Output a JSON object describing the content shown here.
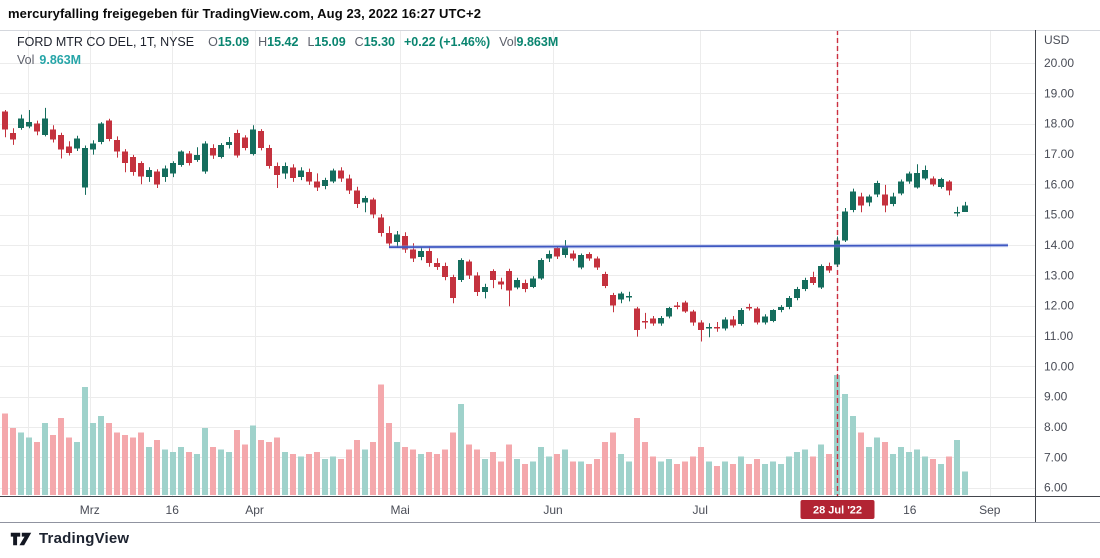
{
  "attribution": "mercuryfalling freigegeben für TradingView.com, Aug 23, 2022 16:27 UTC+2",
  "legend": {
    "title": "FORD MTR CO DEL, 1T, NYSE",
    "ohlc": [
      {
        "label": "O",
        "value": "15.09"
      },
      {
        "label": "H",
        "value": "15.42"
      },
      {
        "label": "L",
        "value": "15.09"
      },
      {
        "label": "C",
        "value": "15.30"
      }
    ],
    "change": "+0.22 (+1.46%)",
    "vol_label": "Vol",
    "vol_value": "9.863M",
    "row2_label": "Vol",
    "row2_value": "9.863M"
  },
  "price_axis": {
    "unit": "USD",
    "ticks": [
      "20.00",
      "19.00",
      "18.00",
      "17.00",
      "16.00",
      "15.00",
      "14.00",
      "13.00",
      "12.00",
      "11.00",
      "10.00",
      "9.00",
      "8.00",
      "7.00",
      "6.00"
    ]
  },
  "time_axis": {
    "labels": [
      {
        "text": "Mrz",
        "i": 10.6
      },
      {
        "text": "16",
        "i": 20.9
      },
      {
        "text": "Apr",
        "i": 31.2
      },
      {
        "text": "Mai",
        "i": 49.4
      },
      {
        "text": "Jun",
        "i": 68.5
      },
      {
        "text": "Jul",
        "i": 86.9
      },
      {
        "text": "16",
        "i": 113.1
      },
      {
        "text": "Sep",
        "i": 123.1
      }
    ],
    "extra_gridline_indices": [
      2.9
    ],
    "highlight": {
      "text": "28 Jul '22",
      "i": 104
    }
  },
  "footer": {
    "logo_text": "TradingView"
  },
  "colors": {
    "candle_up": "#156d5d",
    "candle_down": "#c4323e",
    "volume_up": "#9fd2cb",
    "volume_down": "#f4a8ac",
    "trend_line": "#3f58c2",
    "trend_halo": "#8ea0e2",
    "event_line": "#cc2f40",
    "badge_bg": "#b22433",
    "badge_text": "#ffffff",
    "legend_value_green": "#0a8570",
    "legend_value_teal": "#26a5a8",
    "grid": "#ececec",
    "axis_text": "#4a4d57",
    "border_dark": "#42454c",
    "border_light": "#d4d7dd",
    "separator_mid": "#9093a0",
    "attribution_text": "#0a0a0a"
  },
  "chart_data": {
    "type": "candlestick",
    "symbol": "FORD MTR CO DEL",
    "exchange": "NYSE",
    "interval": "1T",
    "currency": "USD",
    "price_range_visible": [
      6,
      20
    ],
    "date_range_visible": "Feb 2022 - Sep 2022 (last bar Aug 23, 2022)",
    "fields": [
      "open",
      "high",
      "low",
      "close",
      "volume_millions"
    ],
    "candles": [
      [
        18.4,
        18.45,
        17.55,
        17.8,
        34
      ],
      [
        17.7,
        17.85,
        17.3,
        17.48,
        28
      ],
      [
        17.85,
        18.3,
        17.8,
        18.17,
        26
      ],
      [
        17.9,
        18.45,
        17.85,
        18.06,
        24
      ],
      [
        18.0,
        18.1,
        17.62,
        17.75,
        22
      ],
      [
        17.62,
        18.52,
        17.58,
        18.17,
        30
      ],
      [
        17.8,
        17.95,
        17.38,
        17.47,
        25
      ],
      [
        17.62,
        17.7,
        16.85,
        17.15,
        32
      ],
      [
        17.25,
        17.42,
        16.95,
        17.03,
        24
      ],
      [
        17.18,
        17.6,
        17.1,
        17.51,
        22
      ],
      [
        15.9,
        17.28,
        15.65,
        17.2,
        45
      ],
      [
        17.15,
        17.45,
        16.98,
        17.35,
        30
      ],
      [
        17.4,
        18.05,
        17.32,
        18.0,
        33
      ],
      [
        18.1,
        18.16,
        17.42,
        17.5,
        30
      ],
      [
        17.46,
        17.58,
        16.88,
        17.08,
        26
      ],
      [
        17.08,
        17.16,
        16.4,
        16.7,
        25
      ],
      [
        16.9,
        16.97,
        16.28,
        16.4,
        24
      ],
      [
        16.7,
        16.76,
        16.0,
        16.25,
        26
      ],
      [
        16.25,
        16.56,
        16.08,
        16.48,
        20
      ],
      [
        16.42,
        16.5,
        15.88,
        16.0,
        23
      ],
      [
        16.25,
        16.62,
        16.08,
        16.53,
        19
      ],
      [
        16.36,
        16.76,
        16.24,
        16.7,
        18
      ],
      [
        16.64,
        17.12,
        16.58,
        17.08,
        20
      ],
      [
        17.02,
        17.1,
        16.62,
        16.7,
        18
      ],
      [
        16.8,
        17.22,
        16.74,
        16.97,
        17
      ],
      [
        16.42,
        17.42,
        16.35,
        17.35,
        28
      ],
      [
        17.2,
        17.32,
        16.84,
        16.95,
        20
      ],
      [
        16.9,
        17.36,
        16.85,
        17.3,
        19
      ],
      [
        17.3,
        17.56,
        17.18,
        17.4,
        18
      ],
      [
        17.7,
        17.8,
        16.88,
        16.95,
        27
      ],
      [
        17.55,
        17.62,
        17.12,
        17.2,
        21
      ],
      [
        17.0,
        17.95,
        16.95,
        17.8,
        29
      ],
      [
        17.75,
        17.82,
        17.12,
        17.2,
        23
      ],
      [
        17.2,
        17.3,
        16.52,
        16.6,
        22
      ],
      [
        16.6,
        16.72,
        15.88,
        16.3,
        24
      ],
      [
        16.35,
        16.72,
        16.18,
        16.6,
        18
      ],
      [
        16.55,
        16.66,
        16.08,
        16.2,
        17
      ],
      [
        16.25,
        16.56,
        16.14,
        16.45,
        16
      ],
      [
        16.4,
        16.52,
        15.98,
        16.1,
        17
      ],
      [
        16.1,
        16.36,
        15.78,
        15.9,
        18
      ],
      [
        15.95,
        16.22,
        15.84,
        16.15,
        15
      ],
      [
        16.1,
        16.52,
        16.04,
        16.45,
        16
      ],
      [
        16.45,
        16.56,
        16.08,
        16.2,
        15
      ],
      [
        16.2,
        16.32,
        15.68,
        15.8,
        19
      ],
      [
        15.8,
        15.92,
        15.22,
        15.35,
        23
      ],
      [
        15.4,
        15.62,
        15.08,
        15.55,
        19
      ],
      [
        15.5,
        15.56,
        14.88,
        15.0,
        22
      ],
      [
        14.9,
        15.02,
        14.28,
        14.4,
        46
      ],
      [
        14.4,
        14.62,
        13.93,
        14.05,
        30
      ],
      [
        14.1,
        14.46,
        13.9,
        14.35,
        22
      ],
      [
        14.3,
        14.42,
        13.74,
        13.85,
        20
      ],
      [
        13.85,
        14.06,
        13.44,
        13.55,
        19
      ],
      [
        13.6,
        13.92,
        13.5,
        13.8,
        17
      ],
      [
        13.8,
        13.96,
        13.28,
        13.4,
        18
      ],
      [
        13.4,
        13.56,
        13.18,
        13.28,
        17
      ],
      [
        13.3,
        13.42,
        12.84,
        12.95,
        19
      ],
      [
        12.95,
        13.02,
        12.08,
        12.25,
        26
      ],
      [
        12.85,
        13.56,
        12.78,
        13.5,
        38
      ],
      [
        13.45,
        13.52,
        12.88,
        13.0,
        21
      ],
      [
        13.0,
        13.1,
        12.32,
        12.45,
        19
      ],
      [
        12.45,
        12.72,
        12.24,
        12.62,
        15
      ],
      [
        13.15,
        13.2,
        12.58,
        12.85,
        18
      ],
      [
        12.8,
        12.92,
        12.54,
        12.7,
        14
      ],
      [
        13.15,
        13.22,
        11.98,
        12.5,
        21
      ],
      [
        12.6,
        12.92,
        12.54,
        12.84,
        15
      ],
      [
        12.75,
        12.86,
        12.44,
        12.55,
        13
      ],
      [
        12.62,
        12.97,
        12.58,
        12.9,
        14
      ],
      [
        12.9,
        13.56,
        12.85,
        13.5,
        20
      ],
      [
        13.55,
        13.82,
        13.44,
        13.7,
        16
      ],
      [
        13.9,
        13.96,
        13.54,
        13.62,
        17
      ],
      [
        13.67,
        14.16,
        13.58,
        13.97,
        19
      ],
      [
        13.72,
        13.82,
        13.48,
        13.56,
        14
      ],
      [
        13.25,
        13.72,
        13.2,
        13.67,
        14
      ],
      [
        13.7,
        13.76,
        13.48,
        13.55,
        13
      ],
      [
        13.55,
        13.62,
        13.18,
        13.25,
        15
      ],
      [
        13.05,
        13.12,
        12.58,
        12.65,
        22
      ],
      [
        12.35,
        12.42,
        11.78,
        12.0,
        26
      ],
      [
        12.2,
        12.46,
        12.08,
        12.4,
        17
      ],
      [
        12.3,
        12.46,
        12.14,
        12.32,
        14
      ],
      [
        11.9,
        11.96,
        10.98,
        11.2,
        32
      ],
      [
        11.5,
        11.76,
        11.24,
        11.48,
        22
      ],
      [
        11.58,
        11.66,
        11.34,
        11.42,
        16
      ],
      [
        11.42,
        11.66,
        11.34,
        11.6,
        14
      ],
      [
        11.64,
        11.96,
        11.58,
        11.92,
        15
      ],
      [
        12.0,
        12.12,
        11.88,
        11.95,
        13
      ],
      [
        12.1,
        12.16,
        11.76,
        11.8,
        14
      ],
      [
        11.8,
        11.86,
        11.34,
        11.45,
        16
      ],
      [
        11.45,
        11.52,
        10.82,
        11.2,
        20
      ],
      [
        11.25,
        11.42,
        10.96,
        11.3,
        14
      ],
      [
        11.3,
        11.46,
        11.14,
        11.25,
        12
      ],
      [
        11.25,
        11.62,
        11.18,
        11.55,
        14
      ],
      [
        11.55,
        11.66,
        11.28,
        11.35,
        13
      ],
      [
        11.4,
        11.92,
        11.34,
        11.85,
        16
      ],
      [
        11.95,
        12.06,
        11.84,
        11.9,
        13
      ],
      [
        11.9,
        11.96,
        11.38,
        11.45,
        15
      ],
      [
        11.45,
        11.72,
        11.38,
        11.65,
        13
      ],
      [
        11.5,
        11.88,
        11.45,
        11.85,
        14
      ],
      [
        11.85,
        12.02,
        11.78,
        11.95,
        13
      ],
      [
        11.95,
        12.32,
        11.88,
        12.25,
        16
      ],
      [
        12.25,
        12.62,
        12.18,
        12.55,
        18
      ],
      [
        12.55,
        12.92,
        12.48,
        12.85,
        19
      ],
      [
        12.95,
        13.12,
        12.68,
        12.75,
        16
      ],
      [
        12.6,
        13.36,
        12.55,
        13.3,
        21
      ],
      [
        13.3,
        13.42,
        13.08,
        13.15,
        17
      ],
      [
        13.35,
        14.28,
        13.28,
        14.15,
        50
      ],
      [
        14.15,
        15.22,
        14.1,
        15.1,
        42
      ],
      [
        15.15,
        15.86,
        15.08,
        15.77,
        33
      ],
      [
        15.6,
        15.72,
        15.08,
        15.3,
        26
      ],
      [
        15.4,
        15.66,
        15.28,
        15.6,
        20
      ],
      [
        15.67,
        16.12,
        15.58,
        16.05,
        24
      ],
      [
        15.67,
        15.98,
        15.08,
        15.3,
        22
      ],
      [
        15.35,
        15.72,
        15.28,
        15.6,
        17
      ],
      [
        15.7,
        16.16,
        15.64,
        16.1,
        20
      ],
      [
        16.1,
        16.42,
        16.02,
        16.35,
        18
      ],
      [
        15.9,
        16.66,
        15.86,
        16.37,
        19
      ],
      [
        16.2,
        16.62,
        16.14,
        16.47,
        16
      ],
      [
        16.2,
        16.26,
        15.94,
        16.0,
        15
      ],
      [
        15.92,
        16.22,
        15.86,
        16.17,
        13
      ],
      [
        16.1,
        16.14,
        15.64,
        15.8,
        16
      ],
      [
        15.06,
        15.26,
        14.94,
        15.08,
        23
      ],
      [
        15.09,
        15.42,
        15.09,
        15.3,
        9.863
      ]
    ],
    "annotations": {
      "horizontal_trend_line": {
        "from_index": 48,
        "price_start": 13.93,
        "price_end": 13.99,
        "note": "blue line near 14.00 extending right"
      },
      "vertical_event_line": {
        "index": 104,
        "style": "dashed-red",
        "label": "28 Jul '22"
      }
    },
    "legend_last_bar": {
      "open": 15.09,
      "high": 15.42,
      "low": 15.09,
      "close": 15.3,
      "change": "+0.22 (+1.46%)",
      "volume": "9.863M"
    }
  }
}
